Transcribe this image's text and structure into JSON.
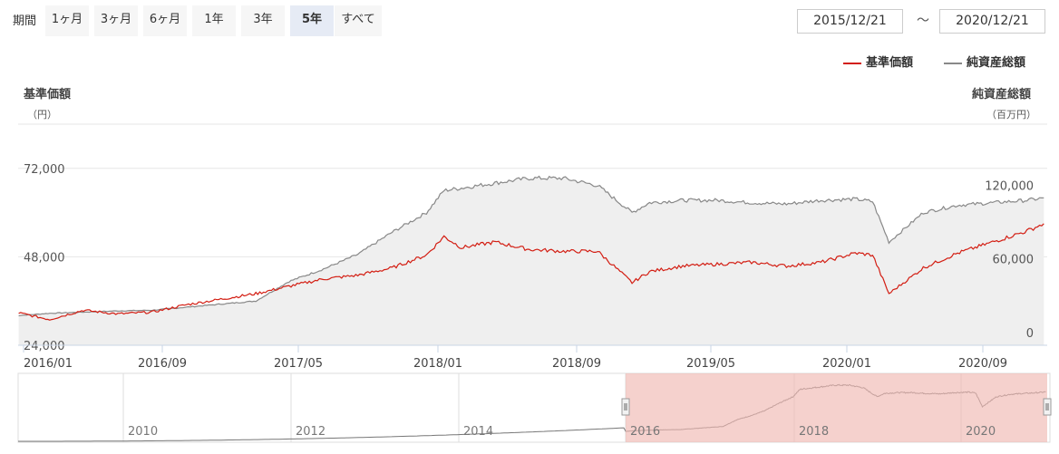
{
  "period": {
    "label": "期間",
    "buttons": [
      "1ヶ月",
      "3ヶ月",
      "6ヶ月",
      "1年",
      "3年",
      "5年",
      "すべて"
    ],
    "active": "5年"
  },
  "date_range": {
    "from": "2015/12/21",
    "separator": "～",
    "to": "2020/12/21"
  },
  "legend": {
    "nav_label": "基準価額",
    "aum_label": "純資産総額"
  },
  "axes": {
    "left_title": "基準価額",
    "left_unit": "（円）",
    "right_title": "純資産総額",
    "right_unit": "（百万円）"
  },
  "colors": {
    "nav": "#d31e13",
    "aum": "#888888",
    "selection": "#f0b8b2",
    "grid": "#e6e6e6",
    "area": "#efefef"
  },
  "chart_data": {
    "type": "line",
    "x_ticks": [
      "2016/01",
      "2016/09",
      "2017/05",
      "2018/01",
      "2018/09",
      "2019/05",
      "2020/01",
      "2020/09"
    ],
    "left_ticks": [
      "24,000",
      "48,000",
      "72,000"
    ],
    "right_ticks": [
      "0",
      "60,000",
      "120,000"
    ],
    "left_ylim": [
      24000,
      84000
    ],
    "right_ylim": [
      0,
      180000
    ],
    "series": [
      {
        "name": "基準価額",
        "axis": "left",
        "x": [
          "2015/12",
          "2016/02",
          "2016/04",
          "2016/06",
          "2016/08",
          "2016/10",
          "2016/12",
          "2017/02",
          "2017/04",
          "2017/06",
          "2017/08",
          "2017/10",
          "2017/12",
          "2018/01",
          "2018/02",
          "2018/04",
          "2018/06",
          "2018/08",
          "2018/10",
          "2018/12",
          "2019/01",
          "2019/03",
          "2019/05",
          "2019/07",
          "2019/09",
          "2019/11",
          "2020/01",
          "2020/02",
          "2020/03",
          "2020/05",
          "2020/07",
          "2020/09",
          "2020/11",
          "2020/12"
        ],
        "values": [
          33000,
          31000,
          33500,
          32500,
          33000,
          35000,
          36500,
          38000,
          40000,
          42000,
          43000,
          45000,
          48500,
          53500,
          50500,
          52000,
          50000,
          49500,
          49500,
          41000,
          44000,
          45500,
          46000,
          46500,
          45500,
          46500,
          49000,
          48500,
          38000,
          45000,
          49000,
          52000,
          55000,
          57000
        ]
      },
      {
        "name": "純資産総額",
        "axis": "right",
        "x": [
          "2015/12",
          "2016/02",
          "2016/04",
          "2016/06",
          "2016/08",
          "2016/10",
          "2016/12",
          "2017/02",
          "2017/04",
          "2017/06",
          "2017/08",
          "2017/10",
          "2017/12",
          "2018/01",
          "2018/02",
          "2018/04",
          "2018/06",
          "2018/08",
          "2018/10",
          "2018/12",
          "2019/01",
          "2019/03",
          "2019/05",
          "2019/07",
          "2019/09",
          "2019/11",
          "2020/01",
          "2020/02",
          "2020/03",
          "2020/05",
          "2020/07",
          "2020/09",
          "2020/11",
          "2020/12"
        ],
        "values": [
          24000,
          26000,
          27000,
          28000,
          28500,
          31000,
          33500,
          36000,
          52000,
          62000,
          74000,
          92000,
          108000,
          126000,
          128000,
          132000,
          136000,
          136000,
          130000,
          108000,
          116000,
          118000,
          118000,
          116000,
          115000,
          118000,
          119000,
          117000,
          84000,
          108000,
          114000,
          116000,
          118000,
          120000
        ]
      }
    ],
    "navigator": {
      "x_labels": [
        "2010",
        "2012",
        "2014",
        "2016",
        "2018",
        "2020"
      ],
      "selected_from": "2015/12/21",
      "selected_to": "2020/12/21"
    }
  }
}
